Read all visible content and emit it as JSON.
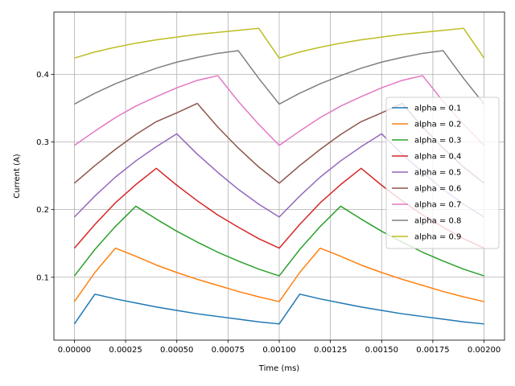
{
  "chart_data": {
    "type": "line",
    "title": "",
    "xlabel": "Time (ms)",
    "ylabel": "Current (A)",
    "xlim": [
      -0.0001,
      0.0021
    ],
    "ylim": [
      0.007,
      0.492
    ],
    "xticks": [
      0.0,
      0.00025,
      0.0005,
      0.00075,
      0.001,
      0.00125,
      0.0015,
      0.00175,
      0.002
    ],
    "xtick_labels": [
      "0.00000",
      "0.00025",
      "0.00050",
      "0.00075",
      "0.00100",
      "0.00125",
      "0.00150",
      "0.00175",
      "0.00200"
    ],
    "yticks": [
      0.1,
      0.2,
      0.3,
      0.4
    ],
    "ytick_labels": [
      "0.1",
      "0.2",
      "0.3",
      "0.4"
    ],
    "grid": true,
    "legend_position": "right",
    "x": [
      0.0,
      0.0001,
      0.0002,
      0.0003,
      0.0004,
      0.0005,
      0.0006,
      0.0007,
      0.0008,
      0.0009,
      0.001,
      0.0011,
      0.0012,
      0.0013,
      0.0014,
      0.0015,
      0.0016,
      0.0017,
      0.0018,
      0.0019,
      0.002
    ],
    "series": [
      {
        "name": "alpha = 0.1",
        "color": "#1f77b4",
        "values": [
          0.031,
          0.075,
          0.068,
          0.062,
          0.056,
          0.051,
          0.046,
          0.042,
          0.038,
          0.034,
          0.031,
          0.075,
          0.068,
          0.062,
          0.056,
          0.051,
          0.046,
          0.042,
          0.038,
          0.034,
          0.031
        ]
      },
      {
        "name": "alpha = 0.2",
        "color": "#ff7f0e",
        "values": [
          0.064,
          0.107,
          0.143,
          0.131,
          0.118,
          0.107,
          0.097,
          0.088,
          0.079,
          0.071,
          0.064,
          0.107,
          0.143,
          0.131,
          0.118,
          0.107,
          0.097,
          0.088,
          0.079,
          0.071,
          0.064
        ]
      },
      {
        "name": "alpha = 0.3",
        "color": "#2ca02c",
        "values": [
          0.102,
          0.141,
          0.175,
          0.205,
          0.186,
          0.168,
          0.152,
          0.137,
          0.124,
          0.112,
          0.102,
          0.141,
          0.175,
          0.205,
          0.186,
          0.168,
          0.152,
          0.137,
          0.124,
          0.112,
          0.102
        ]
      },
      {
        "name": "alpha = 0.4",
        "color": "#d62728",
        "values": [
          0.143,
          0.178,
          0.21,
          0.237,
          0.261,
          0.236,
          0.213,
          0.192,
          0.174,
          0.157,
          0.143,
          0.178,
          0.21,
          0.237,
          0.261,
          0.236,
          0.213,
          0.192,
          0.174,
          0.157,
          0.143
        ]
      },
      {
        "name": "alpha = 0.5",
        "color": "#9467bd",
        "values": [
          0.189,
          0.22,
          0.248,
          0.272,
          0.293,
          0.312,
          0.282,
          0.255,
          0.23,
          0.208,
          0.189,
          0.22,
          0.248,
          0.272,
          0.293,
          0.312,
          0.282,
          0.255,
          0.23,
          0.208,
          0.189
        ]
      },
      {
        "name": "alpha = 0.6",
        "color": "#8c564b",
        "values": [
          0.239,
          0.265,
          0.289,
          0.311,
          0.33,
          0.343,
          0.357,
          0.322,
          0.291,
          0.263,
          0.239,
          0.265,
          0.289,
          0.311,
          0.33,
          0.343,
          0.357,
          0.322,
          0.291,
          0.263,
          0.239
        ]
      },
      {
        "name": "alpha = 0.7",
        "color": "#e377c2",
        "values": [
          0.295,
          0.316,
          0.336,
          0.353,
          0.367,
          0.38,
          0.391,
          0.398,
          0.36,
          0.326,
          0.295,
          0.316,
          0.336,
          0.353,
          0.367,
          0.38,
          0.391,
          0.398,
          0.36,
          0.326,
          0.295
        ]
      },
      {
        "name": "alpha = 0.8",
        "color": "#7f7f7f",
        "values": [
          0.356,
          0.372,
          0.386,
          0.398,
          0.409,
          0.418,
          0.425,
          0.431,
          0.435,
          0.394,
          0.356,
          0.372,
          0.386,
          0.398,
          0.409,
          0.418,
          0.425,
          0.431,
          0.435,
          0.394,
          0.356
        ]
      },
      {
        "name": "alpha = 0.9",
        "color": "#bcbd22",
        "values": [
          0.424,
          0.433,
          0.44,
          0.446,
          0.451,
          0.455,
          0.459,
          0.462,
          0.465,
          0.468,
          0.424,
          0.433,
          0.44,
          0.446,
          0.451,
          0.455,
          0.459,
          0.462,
          0.465,
          0.468,
          0.424
        ]
      }
    ]
  }
}
